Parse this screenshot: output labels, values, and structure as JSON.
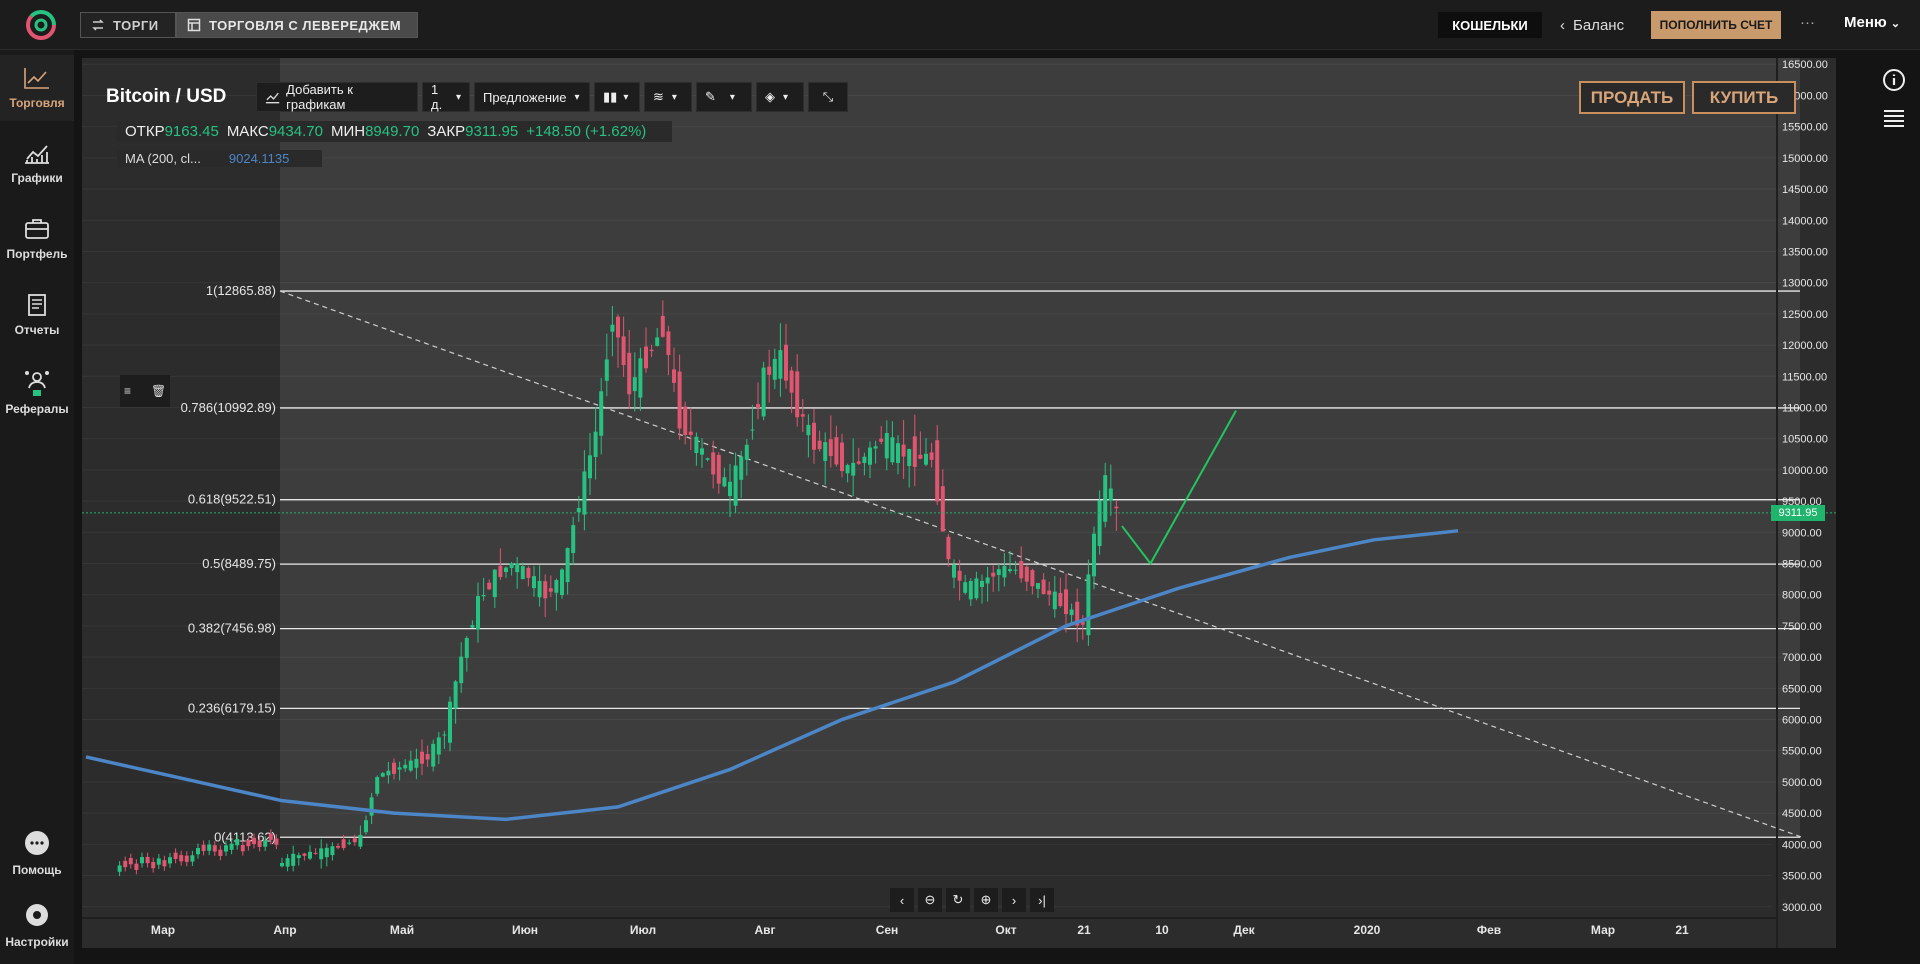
{
  "header": {
    "tab_trading": "ТОРГИ",
    "tab_leverage": "ТОРГОВЛЯ С ЛЕВЕРЕДЖЕМ",
    "wallets": "КОШЕЛЬКИ",
    "balance": "Баланс",
    "deposit": "ПОПОЛНИТЬ СЧЕТ",
    "more": "···",
    "menu": "Меню"
  },
  "sidebar": [
    {
      "label": "Торговля",
      "icon": "trading-icon",
      "active": true
    },
    {
      "label": "Графики",
      "icon": "charts-icon"
    },
    {
      "label": "Портфель",
      "icon": "portfolio-icon"
    },
    {
      "label": "Отчеты",
      "icon": "reports-icon"
    },
    {
      "label": "Рефералы",
      "icon": "referrals-icon"
    },
    {
      "label": "Помощь",
      "icon": "help-icon"
    },
    {
      "label": "Настройки",
      "icon": "settings-icon"
    }
  ],
  "toolbar": {
    "pair": "Bitcoin / USD",
    "add_chart": "Добавить к графикам",
    "interval": "1 д.",
    "price_type": "Предложение",
    "sell": "ПРОДАТЬ",
    "buy": "КУПИТЬ"
  },
  "ohlc": {
    "open_label": "ОТКР",
    "open": "9163.45",
    "high_label": "МАКС",
    "high": "9434.70",
    "low_label": "МИН",
    "low": "8949.70",
    "close_label": "ЗАКР",
    "close": "9311.95",
    "change": "+148.50 (+1.62%)"
  },
  "indicator": {
    "label": "MA (200, cl...",
    "value": "9024.1135"
  },
  "current_price": "9311.95",
  "colors": {
    "accent": "#c9905e",
    "up": "#26c281",
    "down": "#e0556f",
    "ma": "#4c86c7"
  },
  "chart_data": {
    "type": "candlestick",
    "ylim": [
      2900,
      16600
    ],
    "y_ticks": [
      3000,
      3500,
      4000,
      4500,
      5000,
      5500,
      6000,
      6500,
      7000,
      7500,
      8000,
      8500,
      9000,
      9500,
      10000,
      10500,
      11000,
      11500,
      12000,
      12500,
      13000,
      13500,
      14000,
      14500,
      15000,
      15500,
      16000,
      16500
    ],
    "x_labels": [
      "Мар",
      "Апр",
      "Май",
      "Июн",
      "Июл",
      "Авг",
      "Сен",
      "Окт",
      "21",
      "10",
      "Дек",
      "2020",
      "Фев",
      "Мар",
      "21"
    ],
    "fibonacci": [
      {
        "level": "1",
        "price": 12865.88,
        "label": "1(12865.88)"
      },
      {
        "level": "0.786",
        "price": 10992.89,
        "label": "0.786(10992.89)"
      },
      {
        "level": "0.618",
        "price": 9522.51,
        "label": "0.618(9522.51)"
      },
      {
        "level": "0.5",
        "price": 8489.75,
        "label": "0.5(8489.75)"
      },
      {
        "level": "0.382",
        "price": 7456.98,
        "label": "0.382(7456.98)"
      },
      {
        "level": "0.236",
        "price": 6179.15,
        "label": "0.236(6179.15)"
      },
      {
        "level": "0",
        "price": 4113.62,
        "label": "0(4113.62)"
      }
    ],
    "price_path": [
      [
        0,
        3650
      ],
      [
        3,
        3800
      ],
      [
        6,
        3850
      ],
      [
        9,
        3900
      ],
      [
        12,
        4000
      ],
      [
        15,
        4100
      ],
      [
        18,
        5100
      ],
      [
        21,
        5200
      ],
      [
        24,
        5300
      ],
      [
        27,
        5400
      ],
      [
        30,
        5800
      ],
      [
        33,
        7000
      ],
      [
        36,
        7900
      ],
      [
        39,
        8300
      ],
      [
        42,
        8500
      ],
      [
        45,
        8300
      ],
      [
        48,
        8000
      ],
      [
        51,
        8300
      ],
      [
        54,
        9500
      ],
      [
        57,
        10600
      ],
      [
        60,
        12500
      ],
      [
        63,
        11300
      ],
      [
        66,
        11800
      ],
      [
        69,
        12300
      ],
      [
        72,
        10800
      ],
      [
        75,
        10400
      ],
      [
        78,
        10000
      ],
      [
        81,
        9700
      ],
      [
        84,
        10400
      ],
      [
        87,
        11500
      ],
      [
        90,
        11800
      ],
      [
        93,
        11000
      ],
      [
        96,
        10400
      ],
      [
        99,
        10300
      ],
      [
        102,
        10000
      ],
      [
        105,
        10200
      ],
      [
        108,
        10500
      ],
      [
        111,
        10300
      ],
      [
        114,
        10200
      ],
      [
        117,
        10200
      ],
      [
        120,
        8500
      ],
      [
        123,
        8100
      ],
      [
        126,
        8200
      ],
      [
        129,
        8400
      ],
      [
        132,
        8400
      ],
      [
        135,
        8200
      ],
      [
        138,
        8000
      ],
      [
        141,
        7800
      ],
      [
        144,
        7500
      ],
      [
        146,
        9000
      ],
      [
        148,
        9800
      ],
      [
        150,
        9311.95
      ]
    ],
    "ma200": [
      [
        -35,
        5400
      ],
      [
        -20,
        5100
      ],
      [
        0,
        4700
      ],
      [
        20,
        4500
      ],
      [
        40,
        4400
      ],
      [
        60,
        4600
      ],
      [
        80,
        5200
      ],
      [
        100,
        6000
      ],
      [
        120,
        6600
      ],
      [
        140,
        7500
      ],
      [
        160,
        8100
      ],
      [
        180,
        8600
      ],
      [
        195,
        8880
      ],
      [
        210,
        9024
      ]
    ],
    "projection": [
      [
        150,
        9100
      ],
      [
        155,
        8500
      ],
      [
        170,
        10950
      ]
    ],
    "trend_line": [
      [
        0,
        12865.88
      ],
      [
        520,
        4113.62
      ]
    ]
  }
}
